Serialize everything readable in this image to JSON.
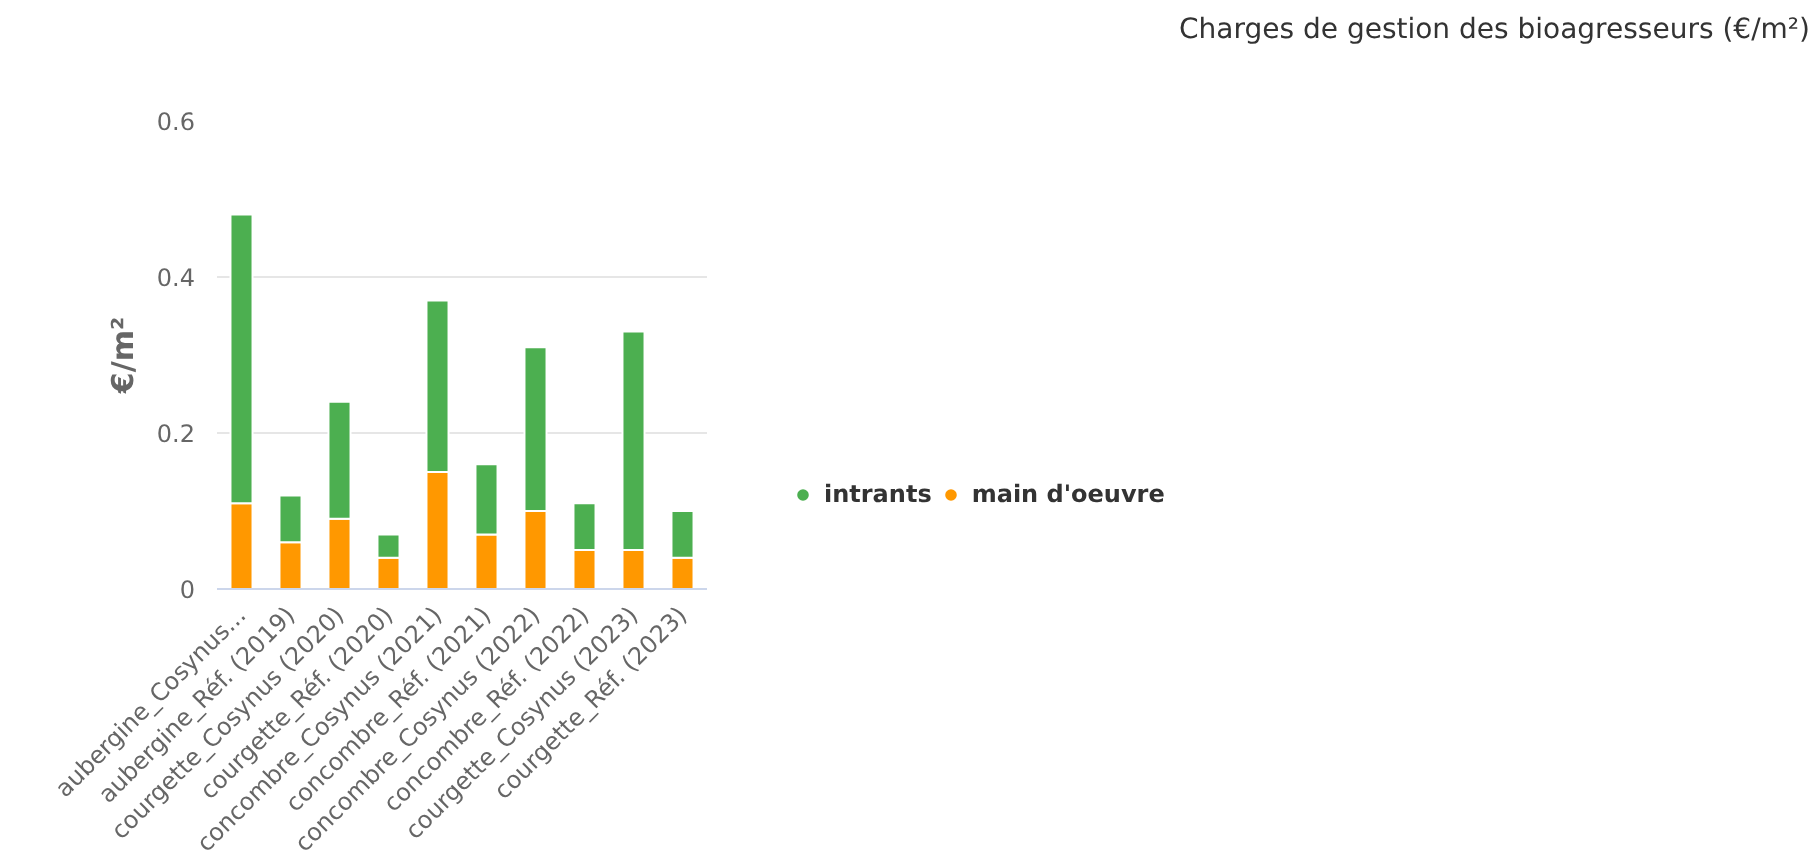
{
  "chart_data": {
    "type": "bar",
    "stacked": true,
    "title": "Charges de gestion des bioagresseurs (€/m²)",
    "ylabel": "€/m²",
    "categories": [
      "aubergine_Cosynus...",
      "aubergine_Réf. (2019)",
      "courgette_Cosynus (2020)",
      "courgette_Réf. (2020)",
      "concombre_Cosynus (2021)",
      "concombre_Réf. (2021)",
      "concombre_Cosynus (2022)",
      "concombre_Réf. (2022)",
      "courgette_Cosynus (2023)",
      "courgette_Réf. (2023)"
    ],
    "series": [
      {
        "name": "main d'oeuvre",
        "color": "#ff9800",
        "values": [
          0.11,
          0.06,
          0.09,
          0.04,
          0.15,
          0.07,
          0.1,
          0.05,
          0.05,
          0.04
        ]
      },
      {
        "name": "intrants",
        "color": "#4caf50",
        "values": [
          0.37,
          0.06,
          0.15,
          0.03,
          0.22,
          0.09,
          0.21,
          0.06,
          0.28,
          0.06
        ]
      }
    ],
    "ylim": [
      0,
      0.6
    ],
    "yticks": [
      {
        "value": 0,
        "label": "0"
      },
      0.2,
      0.4,
      0.6
    ],
    "grid": "y",
    "legend": "right"
  }
}
